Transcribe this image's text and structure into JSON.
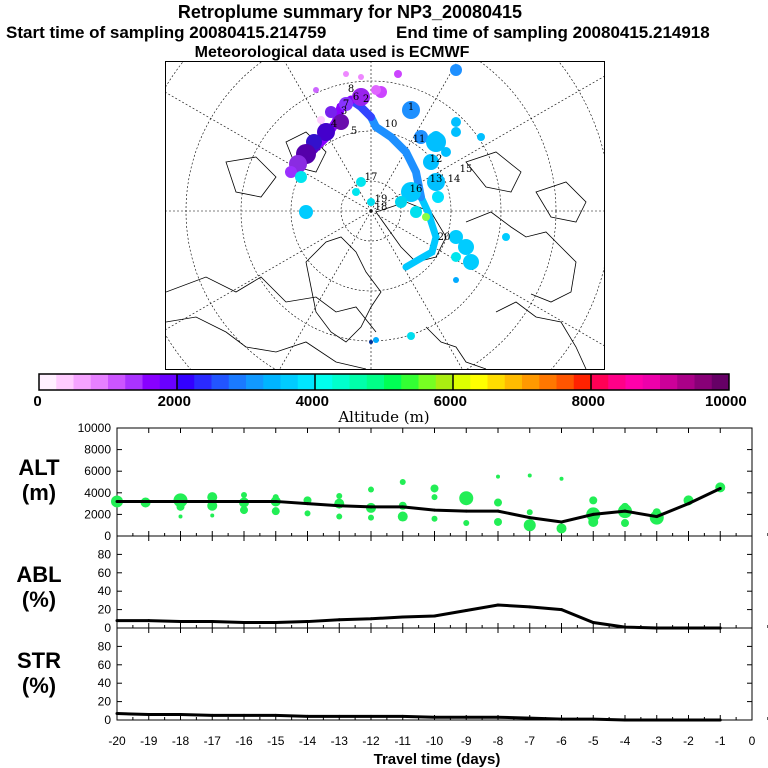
{
  "header": {
    "title": "Retroplume summary for NP3_20080415",
    "start_time": "Start time of sampling 20080415.214759",
    "end_time": "End time of sampling 20080415.214918",
    "met_data": "Meteorological data used is ECMWF"
  },
  "map": {
    "description_label": "Polar stereographic map",
    "plume_labels": [
      {
        "t": "1",
        "c": "#1e90ff"
      },
      {
        "t": "2",
        "c": "#9400d3"
      },
      {
        "t": "3",
        "c": "#8a2be2"
      },
      {
        "t": "4",
        "c": "#6a0dad"
      },
      {
        "t": "5",
        "c": "#4b0082"
      },
      {
        "t": "6",
        "c": "#9932cc"
      },
      {
        "t": "7",
        "c": "#ba55d3"
      },
      {
        "t": "8",
        "c": "#da70d6"
      },
      {
        "t": "10",
        "c": "#ffffff"
      },
      {
        "t": "11",
        "c": "#00bfff"
      },
      {
        "t": "12",
        "c": "#00bfff"
      },
      {
        "t": "13",
        "c": "#00ced1"
      },
      {
        "t": "14",
        "c": "#00bfff"
      },
      {
        "t": "15",
        "c": "#00ced1"
      },
      {
        "t": "16",
        "c": "#00e5ee"
      },
      {
        "t": "17",
        "c": "#00e5ee"
      },
      {
        "t": "18",
        "c": "#ffffff"
      },
      {
        "t": "19",
        "c": "#ffffff"
      },
      {
        "t": "20",
        "c": "#00bfff"
      }
    ]
  },
  "colorbar": {
    "ticks": [
      "0",
      "2000",
      "4000",
      "6000",
      "8000",
      "10000"
    ],
    "axis_label": "Altitude (m)",
    "colors": [
      "#fff0ff",
      "#ffccff",
      "#f5a3ff",
      "#e680ff",
      "#cc55ff",
      "#aa33ff",
      "#8800ff",
      "#6a00ff",
      "#3300ff",
      "#2a2aff",
      "#2255ff",
      "#1a7aff",
      "#1199ff",
      "#00b4ff",
      "#00ccff",
      "#00e6ff",
      "#00ffee",
      "#00ffcc",
      "#00ffaa",
      "#00ff88",
      "#00ff55",
      "#33ff33",
      "#77ff22",
      "#aaee11",
      "#ddff00",
      "#ffff00",
      "#ffdd00",
      "#ffbb00",
      "#ff9900",
      "#ff7700",
      "#ff5500",
      "#ff2200",
      "#ff0055",
      "#ff0088",
      "#ff00aa",
      "#ee00aa",
      "#cc0099",
      "#aa0088",
      "#880077",
      "#660066"
    ]
  },
  "chart_data": [
    {
      "type": "line",
      "panel_label": "ALT\n(m)",
      "label_line1": "ALT",
      "label_line2": "(m)",
      "ylim": [
        0,
        10000
      ],
      "yticks": [
        "0",
        "2000",
        "4000",
        "6000",
        "8000",
        "10000"
      ],
      "yticks_values": [
        0,
        2000,
        4000,
        6000,
        8000,
        10000
      ],
      "x": [
        -20,
        -19,
        -18,
        -17,
        -16,
        -15,
        -14,
        -13,
        -12,
        -11,
        -10,
        -9,
        -8,
        -7,
        -6,
        -5,
        -4,
        -3,
        -2,
        -1
      ],
      "values": [
        3200,
        3200,
        3200,
        3200,
        3200,
        3200,
        3000,
        2800,
        2700,
        2700,
        2400,
        2300,
        2300,
        1700,
        1300,
        2000,
        2300,
        1800,
        3000,
        4400
      ],
      "scatter_points": [
        {
          "x": -20,
          "y": 3200,
          "s": 6
        },
        {
          "x": -19.1,
          "y": 3100,
          "s": 5
        },
        {
          "x": -18,
          "y": 3300,
          "s": 7
        },
        {
          "x": -18,
          "y": 2700,
          "s": 4
        },
        {
          "x": -18,
          "y": 1800,
          "s": 2
        },
        {
          "x": -17,
          "y": 3600,
          "s": 5
        },
        {
          "x": -17,
          "y": 2800,
          "s": 5
        },
        {
          "x": -17,
          "y": 1900,
          "s": 2
        },
        {
          "x": -16,
          "y": 3800,
          "s": 3
        },
        {
          "x": -16,
          "y": 3100,
          "s": 5
        },
        {
          "x": -16,
          "y": 2400,
          "s": 4
        },
        {
          "x": -15,
          "y": 3600,
          "s": 3
        },
        {
          "x": -15,
          "y": 3200,
          "s": 5
        },
        {
          "x": -15,
          "y": 2300,
          "s": 4
        },
        {
          "x": -14,
          "y": 3300,
          "s": 4
        },
        {
          "x": -14,
          "y": 2100,
          "s": 3
        },
        {
          "x": -13,
          "y": 3700,
          "s": 3
        },
        {
          "x": -13,
          "y": 3000,
          "s": 5
        },
        {
          "x": -13,
          "y": 1800,
          "s": 3
        },
        {
          "x": -12,
          "y": 4300,
          "s": 3
        },
        {
          "x": -12,
          "y": 2600,
          "s": 5
        },
        {
          "x": -12,
          "y": 1700,
          "s": 3
        },
        {
          "x": -11,
          "y": 5000,
          "s": 3
        },
        {
          "x": -11,
          "y": 2800,
          "s": 4
        },
        {
          "x": -11,
          "y": 1800,
          "s": 5
        },
        {
          "x": -10,
          "y": 4400,
          "s": 4
        },
        {
          "x": -10,
          "y": 3600,
          "s": 3
        },
        {
          "x": -10,
          "y": 1600,
          "s": 3
        },
        {
          "x": -9,
          "y": 3500,
          "s": 7
        },
        {
          "x": -9,
          "y": 1200,
          "s": 3
        },
        {
          "x": -8,
          "y": 5500,
          "s": 2
        },
        {
          "x": -8,
          "y": 3100,
          "s": 4
        },
        {
          "x": -8,
          "y": 1300,
          "s": 4
        },
        {
          "x": -7,
          "y": 5600,
          "s": 2
        },
        {
          "x": -7,
          "y": 2200,
          "s": 3
        },
        {
          "x": -7,
          "y": 1000,
          "s": 6
        },
        {
          "x": -6,
          "y": 5300,
          "s": 2
        },
        {
          "x": -6,
          "y": 700,
          "s": 5
        },
        {
          "x": -5,
          "y": 3300,
          "s": 4
        },
        {
          "x": -5,
          "y": 2000,
          "s": 7
        },
        {
          "x": -5,
          "y": 1300,
          "s": 5
        },
        {
          "x": -4,
          "y": 2700,
          "s": 4
        },
        {
          "x": -4,
          "y": 2300,
          "s": 7
        },
        {
          "x": -4,
          "y": 1200,
          "s": 4
        },
        {
          "x": -3,
          "y": 1700,
          "s": 7
        },
        {
          "x": -3,
          "y": 2200,
          "s": 4
        },
        {
          "x": -2,
          "y": 3300,
          "s": 5
        },
        {
          "x": -1,
          "y": 4500,
          "s": 5
        }
      ]
    },
    {
      "type": "line",
      "panel_label": "ABL\n(%)",
      "label_line1": "ABL",
      "label_line2": "(%)",
      "ylim": [
        0,
        100
      ],
      "yticks": [
        "0",
        "20",
        "40",
        "60",
        "80"
      ],
      "yticks_values": [
        0,
        20,
        40,
        60,
        80
      ],
      "x": [
        -20,
        -19,
        -18,
        -17,
        -16,
        -15,
        -14,
        -13,
        -12,
        -11,
        -10,
        -9,
        -8,
        -7,
        -6,
        -5,
        -4,
        -3,
        -2,
        -1
      ],
      "values": [
        8,
        8,
        7,
        7,
        6,
        6,
        7,
        9,
        10,
        12,
        13,
        19,
        25,
        23,
        20,
        6,
        1,
        0,
        0,
        0
      ]
    },
    {
      "type": "line",
      "panel_label": "STR\n(%)",
      "label_line1": "STR",
      "label_line2": "(%)",
      "ylim": [
        0,
        100
      ],
      "yticks": [
        "0",
        "20",
        "40",
        "60",
        "80"
      ],
      "yticks_values": [
        0,
        20,
        40,
        60,
        80
      ],
      "x": [
        -20,
        -19,
        -18,
        -17,
        -16,
        -15,
        -14,
        -13,
        -12,
        -11,
        -10,
        -9,
        -8,
        -7,
        -6,
        -5,
        -4,
        -3,
        -2,
        -1
      ],
      "values": [
        7,
        6,
        6,
        5,
        5,
        5,
        4,
        4,
        4,
        4,
        3,
        3,
        3,
        2,
        1,
        1,
        0,
        0,
        0,
        0
      ]
    }
  ],
  "x_axis": {
    "label": "Travel time (days)",
    "ticks": [
      "-20",
      "-19",
      "-18",
      "-17",
      "-16",
      "-15",
      "-14",
      "-13",
      "-12",
      "-11",
      "-10",
      "-9",
      "-8",
      "-7",
      "-6",
      "-5",
      "-4",
      "-3",
      "-2",
      "-1",
      "0"
    ],
    "range": [
      -20,
      0
    ]
  },
  "style": {
    "scatter_color": "#22ee55",
    "line_color": "#000000"
  }
}
